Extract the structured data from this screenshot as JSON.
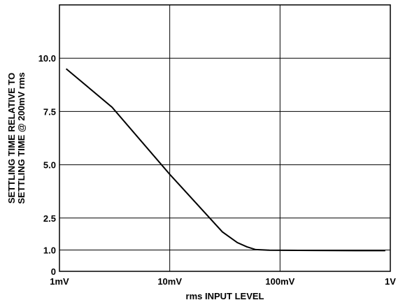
{
  "chart_data": {
    "type": "line",
    "title": "",
    "xlabel": "rms INPUT LEVEL",
    "ylabel_lines": [
      "SETTLING TIME RELATIVE TO",
      "SETTLING TIME @ 200mV rms"
    ],
    "x_scale": "log",
    "xlim": [
      0.001,
      1
    ],
    "ylim": [
      0,
      12.5
    ],
    "x_ticks": [
      {
        "value": 0.001,
        "label": "1mV"
      },
      {
        "value": 0.01,
        "label": "10mV"
      },
      {
        "value": 0.1,
        "label": "100mV"
      },
      {
        "value": 1,
        "label": "1V"
      }
    ],
    "y_ticks": [
      {
        "value": 0,
        "label": "0"
      },
      {
        "value": 1.0,
        "label": "1.0"
      },
      {
        "value": 2.5,
        "label": "2.5"
      },
      {
        "value": 5.0,
        "label": "5.0"
      },
      {
        "value": 7.5,
        "label": "7.5"
      },
      {
        "value": 10.0,
        "label": "10.0"
      }
    ],
    "grid": true,
    "series": [
      {
        "color": "#000000",
        "points": [
          {
            "x": 0.00115,
            "y": 9.5
          },
          {
            "x": 0.003,
            "y": 7.7
          },
          {
            "x": 0.01,
            "y": 4.55
          },
          {
            "x": 0.03,
            "y": 1.85
          },
          {
            "x": 0.041,
            "y": 1.35
          },
          {
            "x": 0.05,
            "y": 1.15
          },
          {
            "x": 0.06,
            "y": 1.02
          },
          {
            "x": 0.08,
            "y": 0.99
          },
          {
            "x": 0.2,
            "y": 0.98
          },
          {
            "x": 0.5,
            "y": 0.97
          },
          {
            "x": 0.9,
            "y": 0.97
          }
        ]
      }
    ]
  }
}
